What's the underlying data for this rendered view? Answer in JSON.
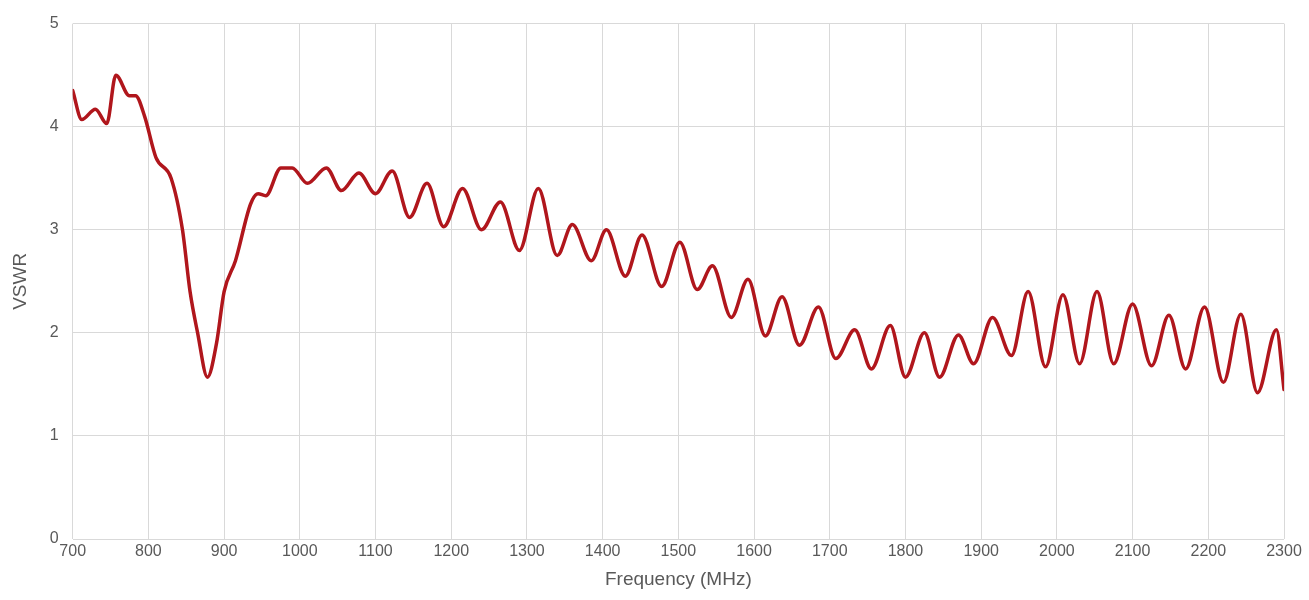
{
  "chart_data": {
    "type": "line",
    "xlabel": "Frequency (MHz)",
    "ylabel": "VSWR",
    "xlim": [
      700,
      2300
    ],
    "xticks": [
      700,
      800,
      900,
      1000,
      1100,
      1200,
      1300,
      1400,
      1500,
      1600,
      1700,
      1800,
      1900,
      2000,
      2100,
      2200,
      2300
    ],
    "ylim": [
      0,
      5
    ],
    "yticks": [
      0,
      1,
      2,
      3,
      4,
      5
    ],
    "grid": true,
    "legend": false,
    "marker": "none",
    "line_style": "solid",
    "series": [
      {
        "color": "#b0161c",
        "x": [
          700,
          712,
          730,
          745,
          757,
          775,
          783,
          795,
          810,
          830,
          845,
          855,
          865,
          878,
          890,
          900,
          915,
          935,
          945,
          955,
          975,
          990,
          1010,
          1035,
          1055,
          1078,
          1100,
          1122,
          1145,
          1168,
          1190,
          1215,
          1240,
          1265,
          1290,
          1315,
          1340,
          1360,
          1385,
          1405,
          1430,
          1452,
          1478,
          1502,
          1525,
          1545,
          1570,
          1592,
          1615,
          1637,
          1660,
          1685,
          1708,
          1733,
          1755,
          1780,
          1800,
          1825,
          1845,
          1870,
          1890,
          1915,
          1940,
          1962,
          1985,
          2008,
          2030,
          2053,
          2075,
          2100,
          2125,
          2148,
          2170,
          2195,
          2220,
          2243,
          2265,
          2290,
          2300
        ],
        "values": [
          4.35,
          4.07,
          4.17,
          4.03,
          4.5,
          4.3,
          4.3,
          4.1,
          3.7,
          3.5,
          3.0,
          2.4,
          2.0,
          1.57,
          1.9,
          2.4,
          2.7,
          3.25,
          3.35,
          3.33,
          3.6,
          3.6,
          3.45,
          3.6,
          3.38,
          3.55,
          3.35,
          3.57,
          3.12,
          3.45,
          3.03,
          3.4,
          3.0,
          3.27,
          2.8,
          3.4,
          2.75,
          3.05,
          2.7,
          3.0,
          2.55,
          2.95,
          2.45,
          2.88,
          2.42,
          2.65,
          2.15,
          2.52,
          1.97,
          2.35,
          1.88,
          2.25,
          1.75,
          2.03,
          1.65,
          2.07,
          1.57,
          2.0,
          1.57,
          1.98,
          1.7,
          2.15,
          1.78,
          2.4,
          1.67,
          2.37,
          1.7,
          2.4,
          1.7,
          2.28,
          1.68,
          2.17,
          1.65,
          2.25,
          1.52,
          2.18,
          1.42,
          2.03,
          1.45
        ]
      }
    ]
  }
}
